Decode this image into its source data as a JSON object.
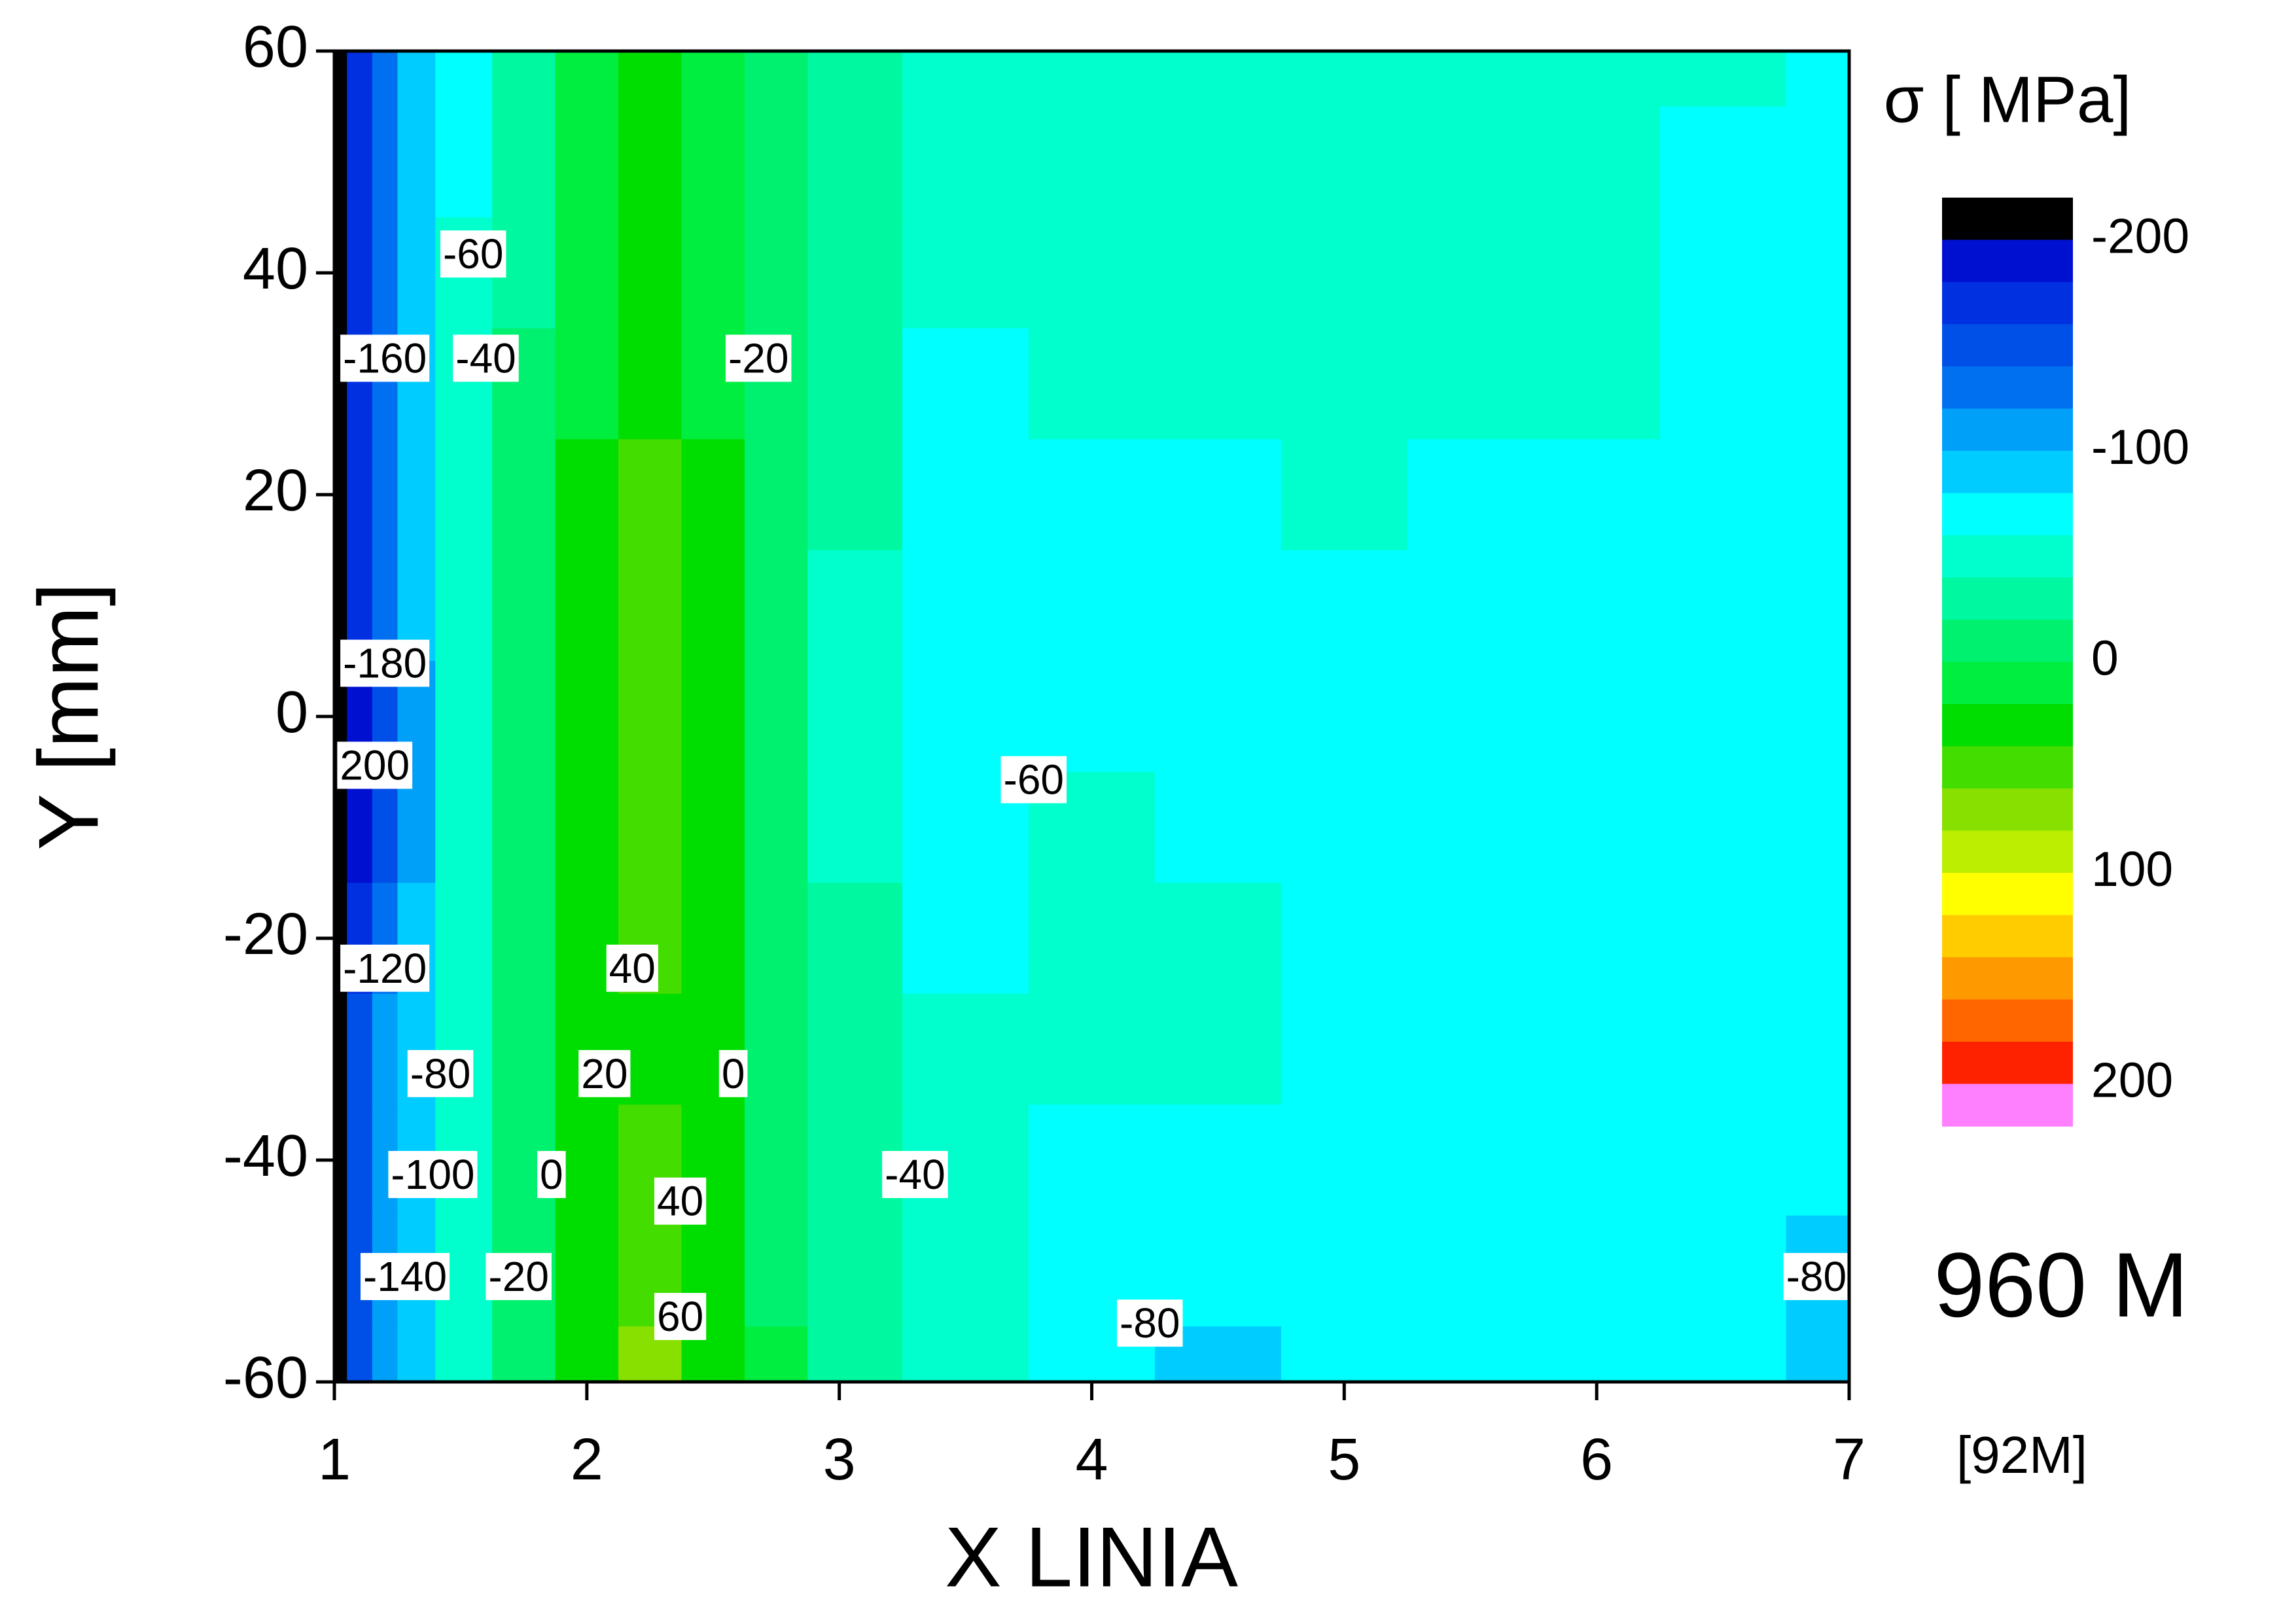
{
  "chart_data": {
    "type": "contour",
    "xlabel": "X LINIA",
    "ylabel": "Y [mm]",
    "xlim": [
      1,
      7
    ],
    "ylim": [
      -60,
      60
    ],
    "xticks": [
      1,
      2,
      3,
      4,
      5,
      6,
      7
    ],
    "yticks": [
      -60,
      -40,
      -20,
      0,
      20,
      40,
      60
    ],
    "x": [
      1,
      1.1,
      1.2,
      1.3,
      1.5,
      1.75,
      2,
      2.25,
      2.5,
      2.75,
      3,
      3.5,
      4,
      4.5,
      5,
      5.5,
      6,
      6.5,
      7
    ],
    "y": [
      60,
      50,
      40,
      30,
      20,
      10,
      0,
      -10,
      -20,
      -30,
      -40,
      -50,
      -60
    ],
    "z": [
      [
        -210,
        -170,
        -130,
        -100,
        -70,
        -30,
        5,
        25,
        10,
        -15,
        -35,
        -50,
        -50,
        -50,
        -50,
        -50,
        -50,
        -55,
        -65
      ],
      [
        -210,
        -170,
        -130,
        -100,
        -65,
        -25,
        10,
        35,
        15,
        -15,
        -35,
        -50,
        -50,
        -50,
        -50,
        -50,
        -50,
        -65,
        -65
      ],
      [
        -210,
        -170,
        -130,
        -100,
        -60,
        -25,
        15,
        35,
        15,
        -15,
        -35,
        -55,
        -50,
        -50,
        -50,
        -50,
        -50,
        -65,
        -65
      ],
      [
        -210,
        -175,
        -135,
        -100,
        -60,
        -20,
        15,
        35,
        15,
        -15,
        -40,
        -62,
        -55,
        -50,
        -50,
        -50,
        -50,
        -65,
        -65
      ],
      [
        -210,
        -175,
        -135,
        -100,
        -55,
        -15,
        25,
        45,
        20,
        -10,
        -40,
        -65,
        -62,
        -65,
        -50,
        -65,
        -65,
        -65,
        -65
      ],
      [
        -210,
        -180,
        -140,
        -100,
        -55,
        -15,
        30,
        45,
        20,
        -10,
        -45,
        -65,
        -65,
        -65,
        -65,
        -65,
        -65,
        -65,
        -65
      ],
      [
        -210,
        -185,
        -145,
        -105,
        -60,
        -15,
        30,
        45,
        20,
        -10,
        -45,
        -65,
        -65,
        -65,
        -65,
        -65,
        -65,
        -65,
        -65
      ],
      [
        -210,
        -185,
        -145,
        -105,
        -60,
        -15,
        30,
        45,
        20,
        -10,
        -45,
        -65,
        -55,
        -65,
        -65,
        -65,
        -65,
        -65,
        -65
      ],
      [
        -210,
        -170,
        -130,
        -100,
        -55,
        -15,
        25,
        45,
        20,
        -10,
        -40,
        -65,
        -55,
        -55,
        -65,
        -65,
        -65,
        -65,
        -65
      ],
      [
        -210,
        -160,
        -120,
        -90,
        -50,
        -10,
        20,
        35,
        20,
        -10,
        -35,
        -50,
        -55,
        -55,
        -65,
        -65,
        -65,
        -65,
        -65
      ],
      [
        -210,
        -160,
        -120,
        -90,
        -50,
        -10,
        20,
        40,
        20,
        -10,
        -35,
        -45,
        -65,
        -65,
        -65,
        -65,
        -65,
        -65,
        -65
      ],
      [
        -210,
        -160,
        -120,
        -90,
        -50,
        -10,
        25,
        50,
        25,
        -5,
        -30,
        -45,
        -65,
        -65,
        -65,
        -65,
        -65,
        -65,
        -85
      ],
      [
        -210,
        -160,
        -120,
        -90,
        -50,
        -10,
        30,
        65,
        35,
        0,
        -30,
        -45,
        -65,
        -85,
        -65,
        -65,
        -65,
        -65,
        -85
      ]
    ],
    "contour_labels": [
      {
        "x": 1.55,
        "y": 41.4,
        "value": -60
      },
      {
        "x": 1.2,
        "y": 32,
        "value": -160
      },
      {
        "x": 1.6,
        "y": 32,
        "value": -40
      },
      {
        "x": 2.68,
        "y": 32,
        "value": -20
      },
      {
        "x": 1.2,
        "y": 4.5,
        "value": -180
      },
      {
        "x": 1.16,
        "y": -4.7,
        "value": 200
      },
      {
        "x": 3.77,
        "y": -6,
        "value": -60
      },
      {
        "x": 1.2,
        "y": -23,
        "value": -120
      },
      {
        "x": 2.18,
        "y": -23,
        "value": 40
      },
      {
        "x": 1.42,
        "y": -32.5,
        "value": -80
      },
      {
        "x": 2.07,
        "y": -32.5,
        "value": 20
      },
      {
        "x": 2.58,
        "y": -32.5,
        "value": 0
      },
      {
        "x": 1.39,
        "y": -41.6,
        "value": -100
      },
      {
        "x": 1.86,
        "y": -41.6,
        "value": 0
      },
      {
        "x": 3.3,
        "y": -41.6,
        "value": -40
      },
      {
        "x": 2.37,
        "y": -44,
        "value": 40
      },
      {
        "x": 1.28,
        "y": -50.8,
        "value": -140
      },
      {
        "x": 1.73,
        "y": -50.8,
        "value": -20
      },
      {
        "x": 6.87,
        "y": -50.8,
        "value": -80
      },
      {
        "x": 4.23,
        "y": -55,
        "value": -80
      },
      {
        "x": 2.37,
        "y": -54.4,
        "value": 60
      }
    ],
    "colorbar": {
      "title": "σ [ MPa]",
      "levels": [
        -220,
        -200,
        -180,
        -160,
        -140,
        -120,
        -100,
        -80,
        -60,
        -40,
        -20,
        0,
        20,
        40,
        60,
        80,
        100,
        120,
        140,
        160,
        180,
        200,
        220
      ],
      "colors": [
        "#000000",
        "#0010d0",
        "#0030e0",
        "#0050e8",
        "#0070f0",
        "#00a0f8",
        "#00ccff",
        "#00ffff",
        "#00ffcc",
        "#00f8a0",
        "#00f070",
        "#00ee40",
        "#00dd00",
        "#44dd00",
        "#88e000",
        "#bbee00",
        "#ffff00",
        "#ffcc00",
        "#ff9900",
        "#ff6600",
        "#ff2200",
        "#ff80ff"
      ],
      "ticks": [
        -200,
        -100,
        0,
        100,
        200
      ]
    },
    "annotations": [
      "960 M",
      "[92M]"
    ]
  }
}
